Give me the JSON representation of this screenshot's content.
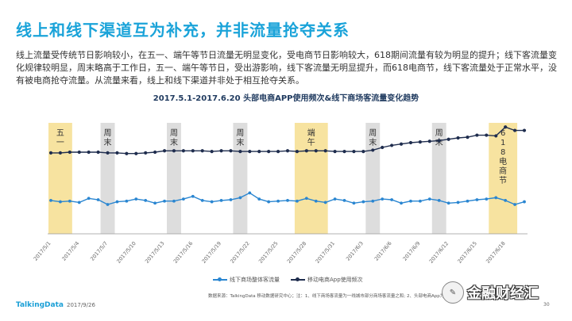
{
  "header": {
    "title": "线上和线下渠道互为补充，并非流量抢夺关系",
    "body": "线上流量受传统节日影响较小，在五一、端午等节日流量无明显变化，受电商节日影响较大，618期间流量有较为明显的提升；线下客流量变化规律较明显，周末略高于工作日，五一、端午等节日，受出游影响，线下客流量无明显提升，而618电商节，线下客流量处于正常水平，没有被电商抢夺流量。从流量来看，线上和线下渠道并非处于相互抢夺关系。"
  },
  "chart_data": {
    "type": "line",
    "title": "2017.5.1-2017.6.20 头部电商APP使用频次&线下商场客流量变化趋势",
    "x_ticks": [
      "2017/5/1",
      "2017/5/4",
      "2017/5/7",
      "2017/5/10",
      "2017/5/13",
      "2017/5/16",
      "2017/5/19",
      "2017/5/22",
      "2017/5/25",
      "2017/5/28",
      "2017/5/31",
      "2017/6/3",
      "2017/6/6",
      "2017/6/9",
      "2017/6/12",
      "2017/6/15",
      "2017/6/18"
    ],
    "x_range": [
      "2017/5/1",
      "2017/6/20"
    ],
    "grid": false,
    "legend_position": "bottom",
    "series": [
      {
        "name": "线下商场整体客流量",
        "color": "#2a86d1",
        "values": [
          55,
          53,
          54,
          52,
          58,
          56,
          49,
          53,
          54,
          57,
          55,
          51,
          54,
          54,
          57,
          61,
          55,
          53,
          55,
          56,
          59,
          66,
          57,
          53,
          54,
          55,
          54,
          58,
          54,
          52,
          57,
          55,
          51,
          53,
          54,
          57,
          56,
          51,
          54,
          54,
          57,
          55,
          51,
          52,
          54,
          56,
          57,
          59,
          55,
          49,
          53
        ]
      },
      {
        "name": "移动电商App使用频次",
        "color": "#1f2d4e",
        "values": [
          125,
          125,
          126,
          126,
          126,
          126,
          125,
          125,
          124,
          124,
          125,
          126,
          128,
          128,
          128,
          128,
          128,
          127,
          128,
          128,
          127,
          127,
          127,
          127,
          127,
          128,
          127,
          128,
          128,
          128,
          127,
          127,
          127,
          127,
          129,
          133,
          136,
          138,
          140,
          141,
          142,
          143,
          145,
          147,
          148,
          151,
          151,
          150,
          163,
          158,
          158
        ]
      }
    ],
    "bands": [
      {
        "label": "五一",
        "color": "#f7e3a0",
        "start": 0,
        "end": 2
      },
      {
        "label": "周末",
        "color": "#dddddd",
        "start": 5.5,
        "end": 6.5
      },
      {
        "label": "周末",
        "color": "#dddddd",
        "start": 12.5,
        "end": 13.5
      },
      {
        "label": "周末",
        "color": "#dddddd",
        "start": 19.5,
        "end": 20.5
      },
      {
        "label": "端午",
        "color": "#f7e3a0",
        "start": 26,
        "end": 29
      },
      {
        "label": "周末",
        "color": "#dddddd",
        "start": 33.5,
        "end": 34.5
      },
      {
        "label": "周末",
        "color": "#dddddd",
        "start": 40.5,
        "end": 41.5
      },
      {
        "label": "618电商节",
        "color": "#f7e3a0",
        "start": 46.5,
        "end": 49
      }
    ]
  },
  "footer": {
    "source": "数据来源：TalkingData 移动数据研究中心；注：1、线下商场客流量为一线城市部分商场客流量之和; 2、头部电商App为用户规模",
    "logo": "TalkingData",
    "date": "2017/9/26",
    "page": "30"
  },
  "watermark": {
    "text": "金融财经汇",
    "icon": "chat-bubble-icon"
  }
}
